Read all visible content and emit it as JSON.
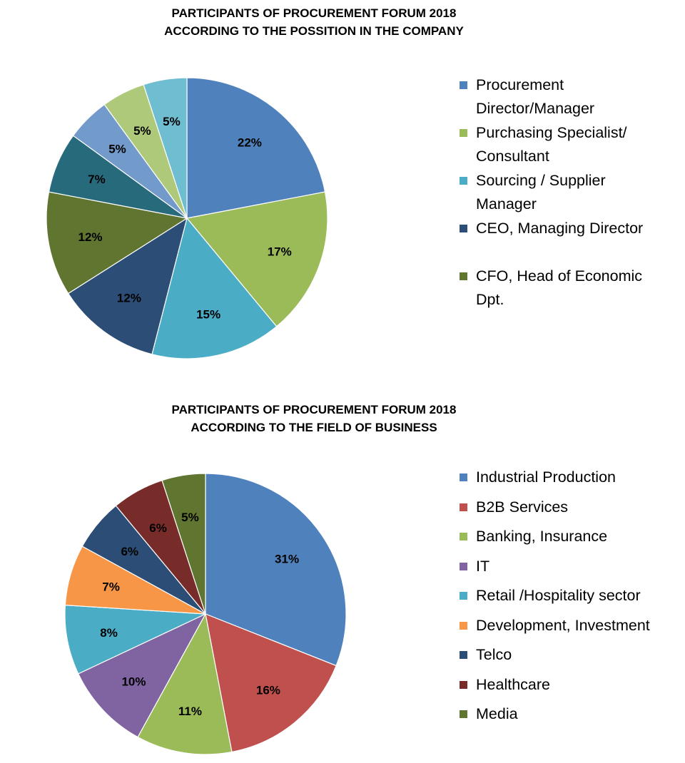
{
  "chart_data": [
    {
      "type": "pie",
      "title_lines": [
        "PARTICIPANTS OF PROCUREMENT FORUM 2018",
        "ACCORDING TO THE POSSITION IN THE COMPANY"
      ],
      "legend_position": "right",
      "slices": [
        {
          "value": 22,
          "label": "22%",
          "color": "#4f81bd"
        },
        {
          "value": 17,
          "label": "17%",
          "color": "#9bbb59"
        },
        {
          "value": 15,
          "label": "15%",
          "color": "#4bacc6"
        },
        {
          "value": 12,
          "label": "12%",
          "color": "#2c4d75"
        },
        {
          "value": 12,
          "label": "12%",
          "color": "#5f7530"
        },
        {
          "value": 7,
          "label": "7%",
          "color": "#276a7c"
        },
        {
          "value": 5,
          "label": "5%",
          "color": "#729aca"
        },
        {
          "value": 5,
          "label": "5%",
          "color": "#afc97a"
        },
        {
          "value": 5,
          "label": "5%",
          "color": "#6fbdd1"
        }
      ],
      "legend": [
        {
          "lines": [
            "Procurement",
            "Director/Manager"
          ],
          "color": "#4f81bd"
        },
        {
          "lines": [
            "Purchasing Specialist/",
            "Consultant"
          ],
          "color": "#9bbb59"
        },
        {
          "lines": [
            "Sourcing / Supplier",
            "Manager"
          ],
          "color": "#4bacc6"
        },
        {
          "lines": [
            "CEO, Managing Director"
          ],
          "color": "#2c4d75"
        },
        {
          "lines": [
            "CFO, Head of Economic",
            "Dpt."
          ],
          "color": "#5f7530"
        }
      ]
    },
    {
      "type": "pie",
      "title_lines": [
        "PARTICIPANTS OF PROCUREMENT FORUM 2018",
        "ACCORDING TO THE FIELD OF BUSINESS"
      ],
      "legend_position": "right",
      "slices": [
        {
          "value": 31,
          "label": "31%",
          "color": "#4f81bd"
        },
        {
          "value": 16,
          "label": "16%",
          "color": "#c0504d"
        },
        {
          "value": 11,
          "label": "11%",
          "color": "#9bbb59"
        },
        {
          "value": 10,
          "label": "10%",
          "color": "#8064a2"
        },
        {
          "value": 8,
          "label": "8%",
          "color": "#4bacc6"
        },
        {
          "value": 7,
          "label": "7%",
          "color": "#f79646"
        },
        {
          "value": 6,
          "label": "6%",
          "color": "#2c4d75"
        },
        {
          "value": 6,
          "label": "6%",
          "color": "#772c2a"
        },
        {
          "value": 5,
          "label": "5%",
          "color": "#5f7530"
        }
      ],
      "legend": [
        {
          "lines": [
            "Industrial Production"
          ],
          "color": "#4f81bd"
        },
        {
          "lines": [
            "B2B Services"
          ],
          "color": "#c0504d"
        },
        {
          "lines": [
            "Banking,  Insurance"
          ],
          "color": "#9bbb59"
        },
        {
          "lines": [
            "IT"
          ],
          "color": "#8064a2"
        },
        {
          "lines": [
            "Retail /Hospitality sector"
          ],
          "color": "#4bacc6"
        },
        {
          "lines": [
            "Development, Investment"
          ],
          "color": "#f79646"
        },
        {
          "lines": [
            "Telco"
          ],
          "color": "#2c4d75"
        },
        {
          "lines": [
            "Healthcare"
          ],
          "color": "#772c2a"
        },
        {
          "lines": [
            "Media"
          ],
          "color": "#5f7530"
        }
      ]
    }
  ]
}
